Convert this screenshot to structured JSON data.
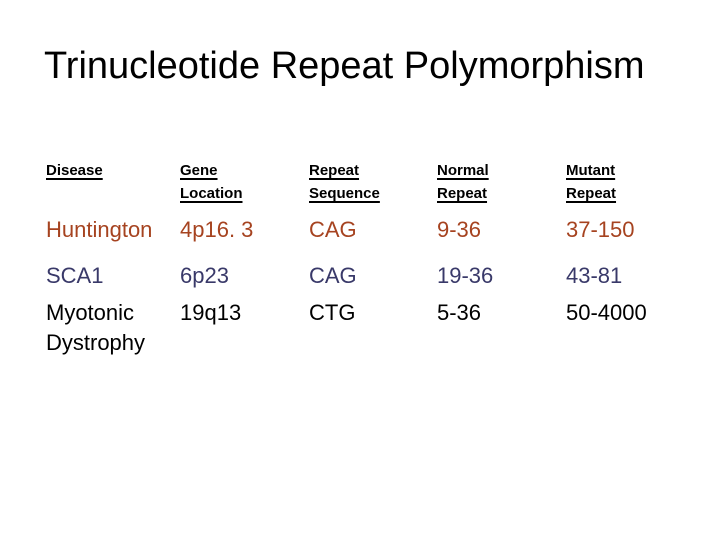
{
  "title": "Trinucleotide Repeat Polymorphism",
  "colors": {
    "background": "#FFFFFF",
    "title": "#000000",
    "header": "#000000"
  },
  "table": {
    "headers": [
      {
        "line1": "Disease",
        "line2": ""
      },
      {
        "line1": "Gene",
        "line2": "Location"
      },
      {
        "line1": "Repeat",
        "line2": "Sequence"
      },
      {
        "line1": "Normal",
        "line2": "Repeat"
      },
      {
        "line1": "Mutant",
        "line2": "Repeat"
      }
    ],
    "rows": [
      {
        "disease": "Huntington",
        "gene_location": "4p16. 3",
        "repeat_sequence": "CAG",
        "normal_repeat": "9-36",
        "mutant_repeat": "37-150",
        "text_color": "#A64320"
      },
      {
        "disease": "SCA1",
        "gene_location": "6p23",
        "repeat_sequence": "CAG",
        "normal_repeat": "19-36",
        "mutant_repeat": "43-81",
        "text_color": "#393969"
      },
      {
        "disease": "Myotonic Dystrophy",
        "gene_location": "19q13",
        "repeat_sequence": "CTG",
        "normal_repeat": "5-36",
        "mutant_repeat": "50-4000",
        "text_color": "#000000"
      }
    ]
  }
}
